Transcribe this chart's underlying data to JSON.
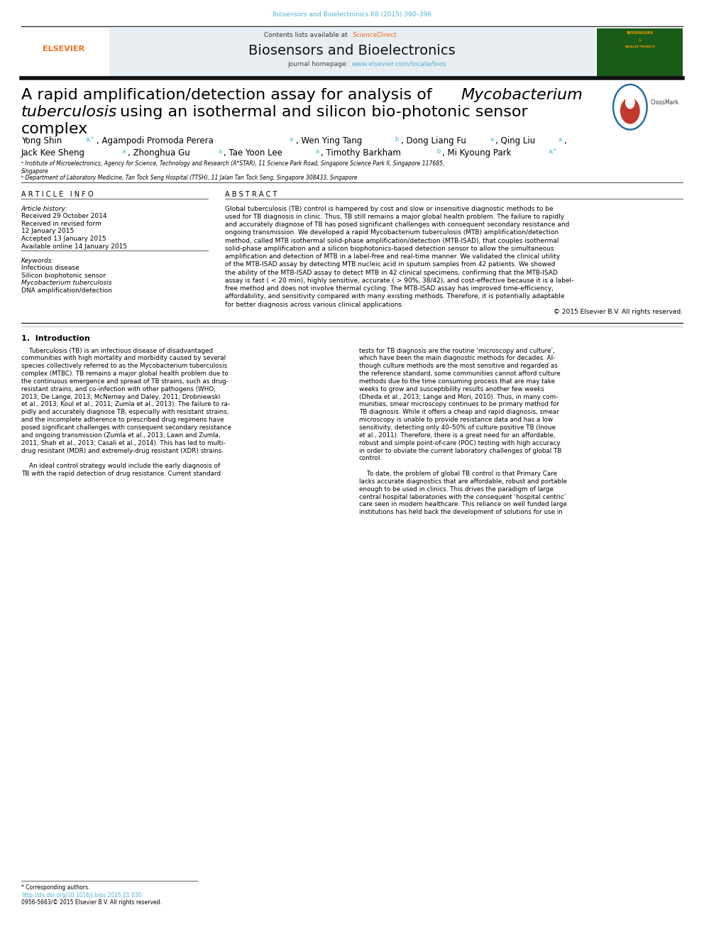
{
  "bg_color": "#ffffff",
  "page_width": 9.92,
  "page_height": 13.23,
  "journal_ref_text": "Biosensors and Bioelectronics 68 (2015) 390–396",
  "journal_ref_color": "#4db3d4",
  "header_bg": "#e8eef2",
  "contents_text": "Contents lists available at ",
  "sciencedirect_text": "ScienceDirect",
  "sciencedirect_color": "#f07020",
  "journal_title": "Biosensors and Bioelectronics",
  "journal_homepage_text": "journal homepage: ",
  "journal_url": "www.elsevier.com/locate/bios",
  "journal_url_color": "#4db3d4",
  "thick_bar_color": "#1a1a1a",
  "article_title_size": 16,
  "article_info_header": "A R T I C L E   I N F O",
  "abstract_header": "A B S T R A C T",
  "article_history_label": "Article history:",
  "received1": "Received 29 October 2014",
  "received2": "Received in revised form",
  "received2b": "12 January 2015",
  "accepted": "Accepted 13 January 2015",
  "available": "Available online 14 January 2015",
  "keywords_label": "Keywords:",
  "kw1": "Infectious disease",
  "kw2": "Silicon biophotonic sensor",
  "kw3": "Mycobacterium tuberculosis",
  "kw4": "DNA amplification/detection",
  "affil_a": "ᵃ Institute of Microelectronics, Agency for Science, Technology and Research (A*STAR), 11 Science Park Road, Singapore Science Park II, Singapore 117685,",
  "affil_a2": "Singapore",
  "affil_b": "ᵇ Department of Laboratory Medicine, Tan Tock Seng Hospital (TTSH), 11 Jalan Tan Tock Seng, Singapore 308433, Singapore",
  "copyright_text": "© 2015 Elsevier B.V. All rights reserved.",
  "intro_header": "1.  Introduction",
  "footer_note": "* Corresponding authors.",
  "footer_doi": "http://dx.doi.org/10.1016/j.bios.2015.01.030",
  "footer_issn": "0956-5663/© 2015 Elsevier B.V. All rights reserved.",
  "elsevier_color": "#f07020",
  "link_color": "#4db3d4",
  "abstract_lines": [
    "Global tuberculosis (TB) control is hampered by cost and slow or insensitive diagnostic methods to be",
    "used for TB diagnosis in clinic. Thus, TB still remains a major global health problem. The failure to rapidly",
    "and accurately diagnose of TB has posed significant challenges with consequent secondary resistance and",
    "ongoing transmission. We developed a rapid Mycobacterium tuberculosis (MTB) amplification/detection",
    "method, called MTB isothermal solid-phase amplification/detection (MTB-ISAD), that couples isothermal",
    "solid-phase amplification and a silicon biophotonics-based detection sensor to allow the simultaneous",
    "amplification and detection of MTB in a label-free and real-time manner. We validated the clinical utility",
    "of the MTB-ISAD assay by detecting MTB nucleic acid in sputum samples from 42 patients. We showed",
    "the ability of the MTB-ISAD assay to detect MTB in 42 clinical specimens, confirming that the MTB-ISAD",
    "assay is fast ( < 20 min), highly sensitive, accurate ( > 90%, 38/42), and cost-effective because it is a label-",
    "free method and does not involve thermal cycling. The MTB-ISAD assay has improved time-efficiency,",
    "affordability, and sensitivity compared with many existing methods. Therefore, it is potentially adaptable",
    "for better diagnosis across various clinical applications."
  ],
  "intro_col1": [
    "    Tuberculosis (TB) is an infectious disease of disadvantaged",
    "communities with high mortality and morbidity caused by several",
    "species collectively referred to as the Mycobacterium tuberculosis",
    "complex (MTBC). TB remains a major global health problem due to",
    "the continuous emergence and spread of TB strains, such as drug-",
    "resistant strains, and co-infection with other pathogens (WHO,",
    "2013; De Lange, 2013; McNerney and Daley, 2011; Drobniewski",
    "et al., 2013; Koul et al., 2011; Zumla et al., 2013). The failure to ra-",
    "pidly and accurately diagnose TB, especially with resistant strains,",
    "and the incomplete adherence to prescribed drug regimens have",
    "posed significant challenges with consequent secondary resistance",
    "and ongoing transmission (Zumla et al., 2013; Lawn and Zumla,",
    "2011; Shah et al., 2013; Casali et al., 2014). This has led to multi-",
    "drug resistant (MDR) and extremely-drug resistant (XDR) strains.",
    "",
    "    An ideal control strategy would include the early diagnosis of",
    "TB with the rapid detection of drug resistance. Current standard"
  ],
  "intro_col2": [
    "tests for TB diagnosis are the routine ‘microscopy and culture’,",
    "which have been the main diagnostic methods for decades. Al-",
    "though culture methods are the most sensitive and regarded as",
    "the reference standard, some communities cannot afford culture",
    "methods due to the time consuming process that are may take",
    "weeks to grow and susceptibility results another few weeks",
    "(Dheda et al., 2013; Lange and Mori, 2010). Thus, in many com-",
    "munities, smear microscopy continues to be primary method for",
    "TB diagnosis. While it offers a cheap and rapid diagnosis, smear",
    "microscopy is unable to provide resistance data and has a low",
    "sensitivity, detecting only 40–50% of culture positive TB (Inoue",
    "et al., 2011). Therefore, there is a great need for an affordable,",
    "robust and simple point-of-care (POC) testing with high accuracy",
    "in order to obviate the current laboratory challenges of global TB",
    "control.",
    "",
    "    To date, the problem of global TB control is that Primary Care",
    "lacks accurate diagnostics that are affordable, robust and portable",
    "enough to be used in clinics. This drives the paradigm of large",
    "central hospital laboratories with the consequent ‘hospital centric’",
    "care seen in modern healthcare. This reliance on well funded large",
    "institutions has held back the development of solutions for use in"
  ]
}
